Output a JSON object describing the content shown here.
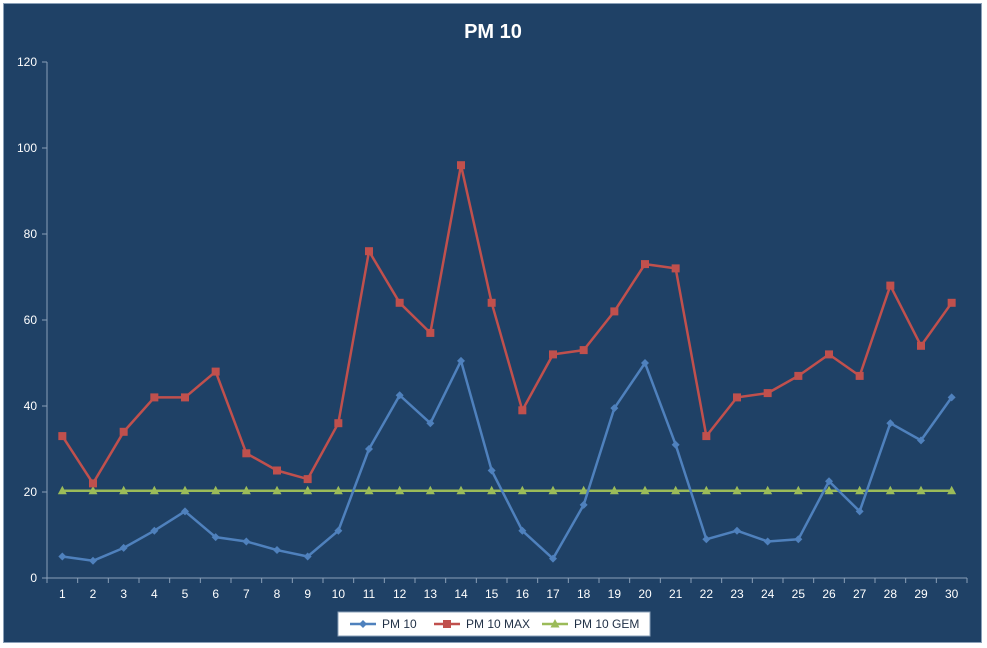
{
  "chart_data": {
    "type": "line",
    "title": "PM 10",
    "xlabel": "",
    "ylabel": "",
    "categories": [
      "1",
      "2",
      "3",
      "4",
      "5",
      "6",
      "7",
      "8",
      "9",
      "10",
      "11",
      "12",
      "13",
      "14",
      "15",
      "16",
      "17",
      "18",
      "19",
      "20",
      "21",
      "22",
      "23",
      "24",
      "25",
      "26",
      "27",
      "28",
      "29",
      "30"
    ],
    "ylim": [
      0,
      120
    ],
    "yticks": [
      0,
      20,
      40,
      60,
      80,
      100,
      120
    ],
    "grid": false,
    "legend_position": "bottom",
    "series": [
      {
        "name": "PM 10",
        "color": "#4f81bd",
        "marker": "diamond",
        "values": [
          5,
          4,
          7,
          11,
          15.5,
          9.5,
          8.5,
          6.5,
          5,
          11,
          30,
          42.5,
          36,
          50.5,
          25,
          11,
          4.5,
          17,
          39.5,
          50,
          31,
          9,
          11,
          8.5,
          9,
          22.5,
          15.5,
          36,
          32,
          42
        ]
      },
      {
        "name": "PM 10 MAX",
        "color": "#c0504d",
        "marker": "square",
        "values": [
          33,
          22,
          34,
          42,
          42,
          48,
          29,
          25,
          23,
          36,
          76,
          64,
          57,
          96,
          64,
          39,
          52,
          53,
          62,
          73,
          72,
          33,
          42,
          43,
          47,
          52,
          47,
          68,
          54,
          64
        ]
      },
      {
        "name": "PM 10 GEM",
        "color": "#9bbb59",
        "marker": "triangle",
        "values": [
          20.3,
          20.3,
          20.3,
          20.3,
          20.3,
          20.3,
          20.3,
          20.3,
          20.3,
          20.3,
          20.3,
          20.3,
          20.3,
          20.3,
          20.3,
          20.3,
          20.3,
          20.3,
          20.3,
          20.3,
          20.3,
          20.3,
          20.3,
          20.3,
          20.3,
          20.3,
          20.3,
          20.3,
          20.3,
          20.3
        ]
      }
    ]
  }
}
